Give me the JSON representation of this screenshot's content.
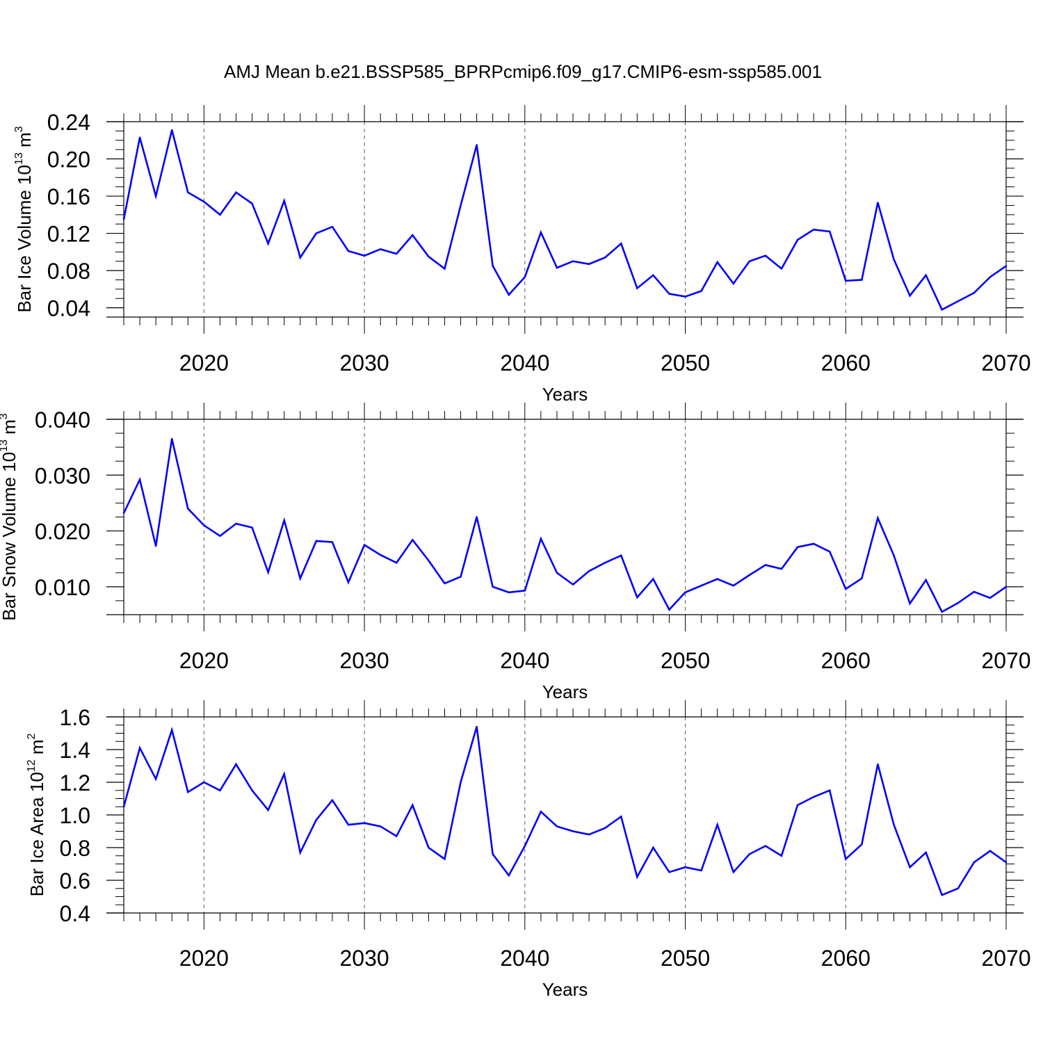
{
  "figure": {
    "title": "AMJ Mean b.e21.BSSP585_BPRPcmip6.f09_g17.CMIP6-esm-ssp585.001",
    "line_color": "#0000ff",
    "grid_style": "dashed vertical gridlines at labeled years"
  },
  "chart_data": [
    {
      "type": "line",
      "ylabel": "Bar Ice Volume 10",
      "ylabel_exp": "13",
      "ylabel_unit": " m",
      "ylabel_unit_exp": "3",
      "xlabel": "Years",
      "xlim": [
        2015,
        2070
      ],
      "ylim": [
        0.03,
        0.24
      ],
      "xticks": [
        2020,
        2030,
        2040,
        2050,
        2060,
        2070
      ],
      "xtick_labels": [
        "2020",
        "2030",
        "2040",
        "2050",
        "2060",
        "2070"
      ],
      "yticks": [
        0.04,
        0.08,
        0.12,
        0.16,
        0.2,
        0.24
      ],
      "ytick_labels": [
        "0.04",
        "0.08",
        "0.12",
        "0.16",
        "0.20",
        "0.24"
      ],
      "yminor_step": 0.01,
      "grid": true,
      "x": [
        2015,
        2016,
        2017,
        2018,
        2019,
        2020,
        2021,
        2022,
        2023,
        2024,
        2025,
        2026,
        2027,
        2028,
        2029,
        2030,
        2031,
        2032,
        2033,
        2034,
        2035,
        2036,
        2037,
        2038,
        2039,
        2040,
        2041,
        2042,
        2043,
        2044,
        2045,
        2046,
        2047,
        2048,
        2049,
        2050,
        2051,
        2052,
        2053,
        2054,
        2055,
        2056,
        2057,
        2058,
        2059,
        2060,
        2061,
        2062,
        2063,
        2064,
        2065,
        2066,
        2067,
        2068,
        2069,
        2070
      ],
      "series": [
        {
          "values": [
            0.135,
            0.223,
            0.16,
            0.231,
            0.164,
            0.154,
            0.14,
            0.164,
            0.152,
            0.109,
            0.155,
            0.094,
            0.12,
            0.127,
            0.101,
            0.096,
            0.103,
            0.098,
            0.118,
            0.095,
            0.082,
            0.15,
            0.215,
            0.085,
            0.054,
            0.073,
            0.121,
            0.083,
            0.09,
            0.087,
            0.094,
            0.109,
            0.061,
            0.075,
            0.055,
            0.052,
            0.058,
            0.089,
            0.066,
            0.09,
            0.096,
            0.082,
            0.113,
            0.124,
            0.122,
            0.069,
            0.07,
            0.153,
            0.092,
            0.053,
            0.075,
            0.038,
            0.047,
            0.056,
            0.073,
            0.085
          ]
        }
      ]
    },
    {
      "type": "line",
      "ylabel": "Bar Snow Volume 10",
      "ylabel_exp": "13",
      "ylabel_unit": " m",
      "ylabel_unit_exp": "3",
      "xlabel": "Years",
      "xlim": [
        2015,
        2070
      ],
      "ylim": [
        0.005,
        0.04
      ],
      "xticks": [
        2020,
        2030,
        2040,
        2050,
        2060,
        2070
      ],
      "xtick_labels": [
        "2020",
        "2030",
        "2040",
        "2050",
        "2060",
        "2070"
      ],
      "yticks": [
        0.01,
        0.02,
        0.03,
        0.04
      ],
      "ytick_labels": [
        "0.010",
        "0.020",
        "0.030",
        "0.040"
      ],
      "yminor_step": 0.0025,
      "grid": true,
      "x": [
        2015,
        2016,
        2017,
        2018,
        2019,
        2020,
        2021,
        2022,
        2023,
        2024,
        2025,
        2026,
        2027,
        2028,
        2029,
        2030,
        2031,
        2032,
        2033,
        2034,
        2035,
        2036,
        2037,
        2038,
        2039,
        2040,
        2041,
        2042,
        2043,
        2044,
        2045,
        2046,
        2047,
        2048,
        2049,
        2050,
        2051,
        2052,
        2053,
        2054,
        2055,
        2056,
        2057,
        2058,
        2059,
        2060,
        2061,
        2062,
        2063,
        2064,
        2065,
        2066,
        2067,
        2068,
        2069,
        2070
      ],
      "series": [
        {
          "values": [
            0.0232,
            0.0292,
            0.0173,
            0.0365,
            0.024,
            0.021,
            0.0191,
            0.0213,
            0.0206,
            0.0126,
            0.0219,
            0.0115,
            0.0182,
            0.018,
            0.0108,
            0.0175,
            0.0157,
            0.0143,
            0.0184,
            0.0147,
            0.0106,
            0.0118,
            0.0225,
            0.01,
            0.009,
            0.0093,
            0.0186,
            0.0125,
            0.0104,
            0.0128,
            0.0143,
            0.0156,
            0.0081,
            0.0114,
            0.0059,
            0.009,
            0.0102,
            0.0114,
            0.0102,
            0.0121,
            0.0139,
            0.0132,
            0.0171,
            0.0177,
            0.0163,
            0.0096,
            0.0115,
            0.0223,
            0.0156,
            0.007,
            0.0112,
            0.0055,
            0.0071,
            0.0091,
            0.008,
            0.01
          ]
        }
      ]
    },
    {
      "type": "line",
      "ylabel": "Bar Ice Area 10",
      "ylabel_exp": "12",
      "ylabel_unit": " m",
      "ylabel_unit_exp": "2",
      "xlabel": "Years",
      "xlim": [
        2015,
        2070
      ],
      "ylim": [
        0.4,
        1.6
      ],
      "xticks": [
        2020,
        2030,
        2040,
        2050,
        2060,
        2070
      ],
      "xtick_labels": [
        "2020",
        "2030",
        "2040",
        "2050",
        "2060",
        "2070"
      ],
      "yticks": [
        0.4,
        0.6,
        0.8,
        1.0,
        1.2,
        1.4,
        1.6
      ],
      "ytick_labels": [
        "0.4",
        "0.6",
        "0.8",
        "1.0",
        "1.2",
        "1.4",
        "1.6"
      ],
      "yminor_step": 0.05,
      "grid": true,
      "x": [
        2015,
        2016,
        2017,
        2018,
        2019,
        2020,
        2021,
        2022,
        2023,
        2024,
        2025,
        2026,
        2027,
        2028,
        2029,
        2030,
        2031,
        2032,
        2033,
        2034,
        2035,
        2036,
        2037,
        2038,
        2039,
        2040,
        2041,
        2042,
        2043,
        2044,
        2045,
        2046,
        2047,
        2048,
        2049,
        2050,
        2051,
        2052,
        2053,
        2054,
        2055,
        2056,
        2057,
        2058,
        2059,
        2060,
        2061,
        2062,
        2063,
        2064,
        2065,
        2066,
        2067,
        2068,
        2069,
        2070
      ],
      "series": [
        {
          "values": [
            1.05,
            1.41,
            1.22,
            1.52,
            1.14,
            1.2,
            1.15,
            1.31,
            1.15,
            1.03,
            1.25,
            0.77,
            0.97,
            1.09,
            0.94,
            0.95,
            0.93,
            0.87,
            1.06,
            0.8,
            0.73,
            1.2,
            1.54,
            0.76,
            0.63,
            0.81,
            1.02,
            0.93,
            0.9,
            0.88,
            0.92,
            0.99,
            0.62,
            0.8,
            0.65,
            0.68,
            0.66,
            0.94,
            0.65,
            0.76,
            0.81,
            0.75,
            1.06,
            1.11,
            1.15,
            0.73,
            0.82,
            1.31,
            0.94,
            0.68,
            0.77,
            0.51,
            0.55,
            0.71,
            0.78,
            0.71
          ]
        }
      ]
    }
  ]
}
